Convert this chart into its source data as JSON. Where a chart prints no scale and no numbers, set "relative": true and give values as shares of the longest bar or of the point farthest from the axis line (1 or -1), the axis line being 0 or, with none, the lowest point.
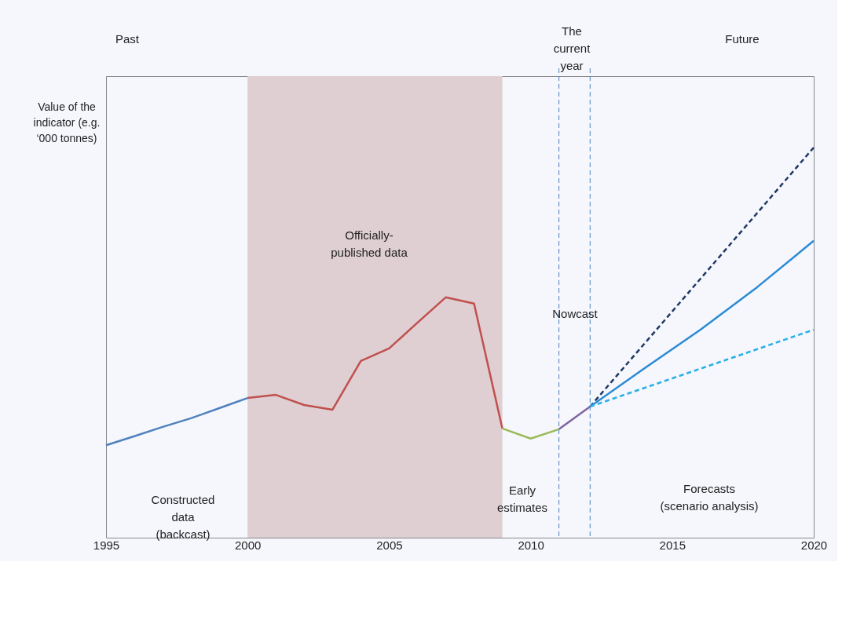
{
  "chart_data": {
    "type": "line",
    "relative": true,
    "ylabel": "Value of the indicator (e.g. ‘000 tonnes)",
    "xlim": [
      1995,
      2020
    ],
    "xticks": [
      1995,
      2000,
      2005,
      2010,
      2015,
      2020
    ],
    "grid": false,
    "marker": "none",
    "series": [
      {
        "color": "#4f81bd",
        "line_style": "solid",
        "x": [
          1995,
          1996,
          1997,
          1998,
          1999,
          2000
        ],
        "values": [
          0.237,
          0.26,
          0.284,
          0.306,
          0.332,
          0.358
        ]
      },
      {
        "color": "#c0504d",
        "line_style": "solid",
        "x": [
          2000,
          2001,
          2002,
          2003,
          2004,
          2005,
          2006,
          2007,
          2008,
          2009
        ],
        "values": [
          0.358,
          0.366,
          0.34,
          0.328,
          0.453,
          0.485,
          0.551,
          0.616,
          0.6,
          0.28
        ]
      },
      {
        "color": "#9bbb59",
        "line_style": "solid",
        "x": [
          2009,
          2010,
          2011
        ],
        "values": [
          0.28,
          0.254,
          0.278
        ]
      },
      {
        "color": "#8064a2",
        "line_style": "solid",
        "x": [
          2011,
          2012.1
        ],
        "values": [
          0.278,
          0.336
        ]
      },
      {
        "color": "#1f3864",
        "line_style": "dashed",
        "x": [
          2012.1,
          2020
        ],
        "values": [
          0.336,
          1.0
        ]
      },
      {
        "color": "#2a8ad6",
        "line_style": "solid",
        "x": [
          2012.1,
          2014,
          2016,
          2018,
          2020
        ],
        "values": [
          0.336,
          0.433,
          0.533,
          0.642,
          0.761
        ]
      },
      {
        "color": "#2ab0e8",
        "line_style": "dashed",
        "x": [
          2012.1,
          2020
        ],
        "values": [
          0.336,
          0.533
        ]
      }
    ],
    "bands": [
      {
        "axis": "x",
        "from": 2000,
        "to": 2009,
        "color": "#dfcfd2"
      }
    ],
    "ref_lines": [
      {
        "axis": "x",
        "value": 2011,
        "color": "#4f81bd",
        "line_style": "dashed"
      },
      {
        "axis": "x",
        "value": 2012.1,
        "color": "#4f81bd",
        "line_style": "dashed"
      }
    ],
    "annotations": [
      "Past",
      "Future",
      "The\ncurrent\nyear",
      "Officially-\npublished data",
      "Constructed\ndata\n(backcast)",
      "Early\nestimates",
      "Nowcast",
      "Forecasts\n(scenario analysis)"
    ]
  }
}
